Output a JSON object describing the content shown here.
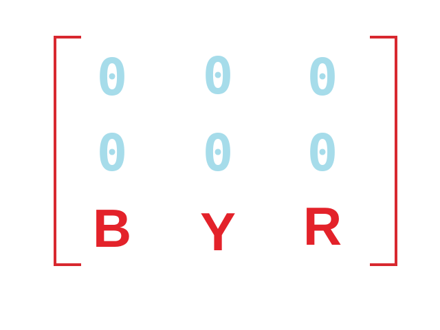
{
  "colors": {
    "bracket": "#d8282f",
    "zero": "#a6dcea",
    "letter": "#e3222a"
  },
  "matrix": {
    "rows": [
      [
        "0",
        "0",
        "0"
      ],
      [
        "0",
        "0",
        "0"
      ],
      [
        "B",
        "Y",
        "R"
      ]
    ]
  }
}
